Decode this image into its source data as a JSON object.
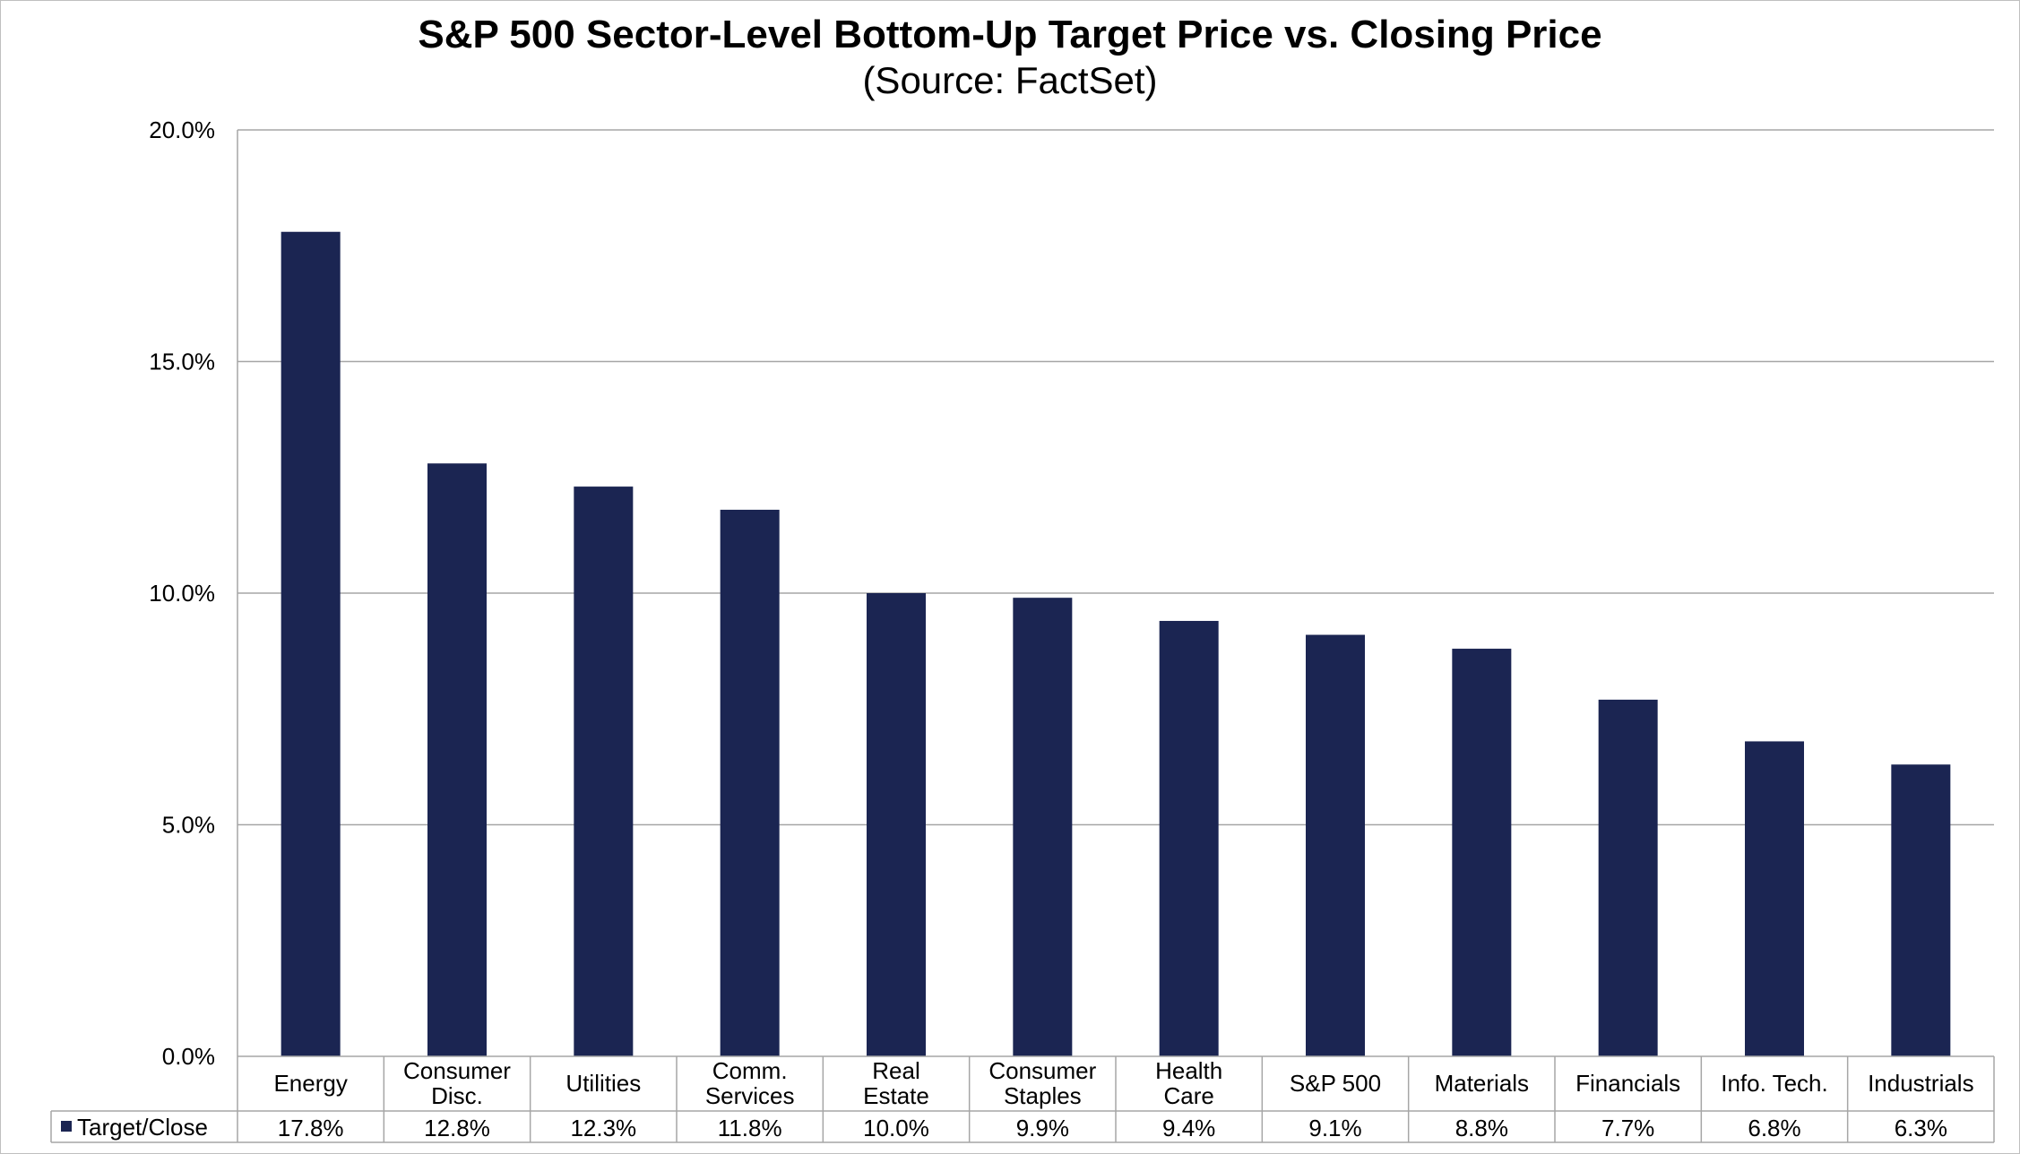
{
  "chart_data": {
    "type": "bar",
    "title": "S&P 500 Sector-Level Bottom-Up Target Price vs. Closing Price",
    "subtitle": "(Source: FactSet)",
    "categories": [
      [
        "Energy"
      ],
      [
        "Consumer",
        "Disc."
      ],
      [
        "Utilities"
      ],
      [
        "Comm.",
        "Services"
      ],
      [
        "Real",
        "Estate"
      ],
      [
        "Consumer",
        "Staples"
      ],
      [
        "Health",
        "Care"
      ],
      [
        "S&P 500"
      ],
      [
        "Materials"
      ],
      [
        "Financials"
      ],
      [
        "Info. Tech."
      ],
      [
        "Industrials"
      ]
    ],
    "series": [
      {
        "name": "Target/Close",
        "values": [
          17.8,
          12.8,
          12.3,
          11.8,
          10.0,
          9.9,
          9.4,
          9.1,
          8.8,
          7.7,
          6.8,
          6.3
        ],
        "labels": [
          "17.8%",
          "12.8%",
          "12.3%",
          "11.8%",
          "10.0%",
          "9.9%",
          "9.4%",
          "9.1%",
          "8.8%",
          "7.7%",
          "6.8%",
          "6.3%"
        ]
      }
    ],
    "ylim": [
      0,
      20
    ],
    "yticks": [
      "0.0%",
      "5.0%",
      "10.0%",
      "15.0%",
      "20.0%"
    ],
    "grid": true,
    "legend": "data-table-left",
    "bar_color": "#1b2552",
    "grid_color": "#a6a6a6"
  }
}
